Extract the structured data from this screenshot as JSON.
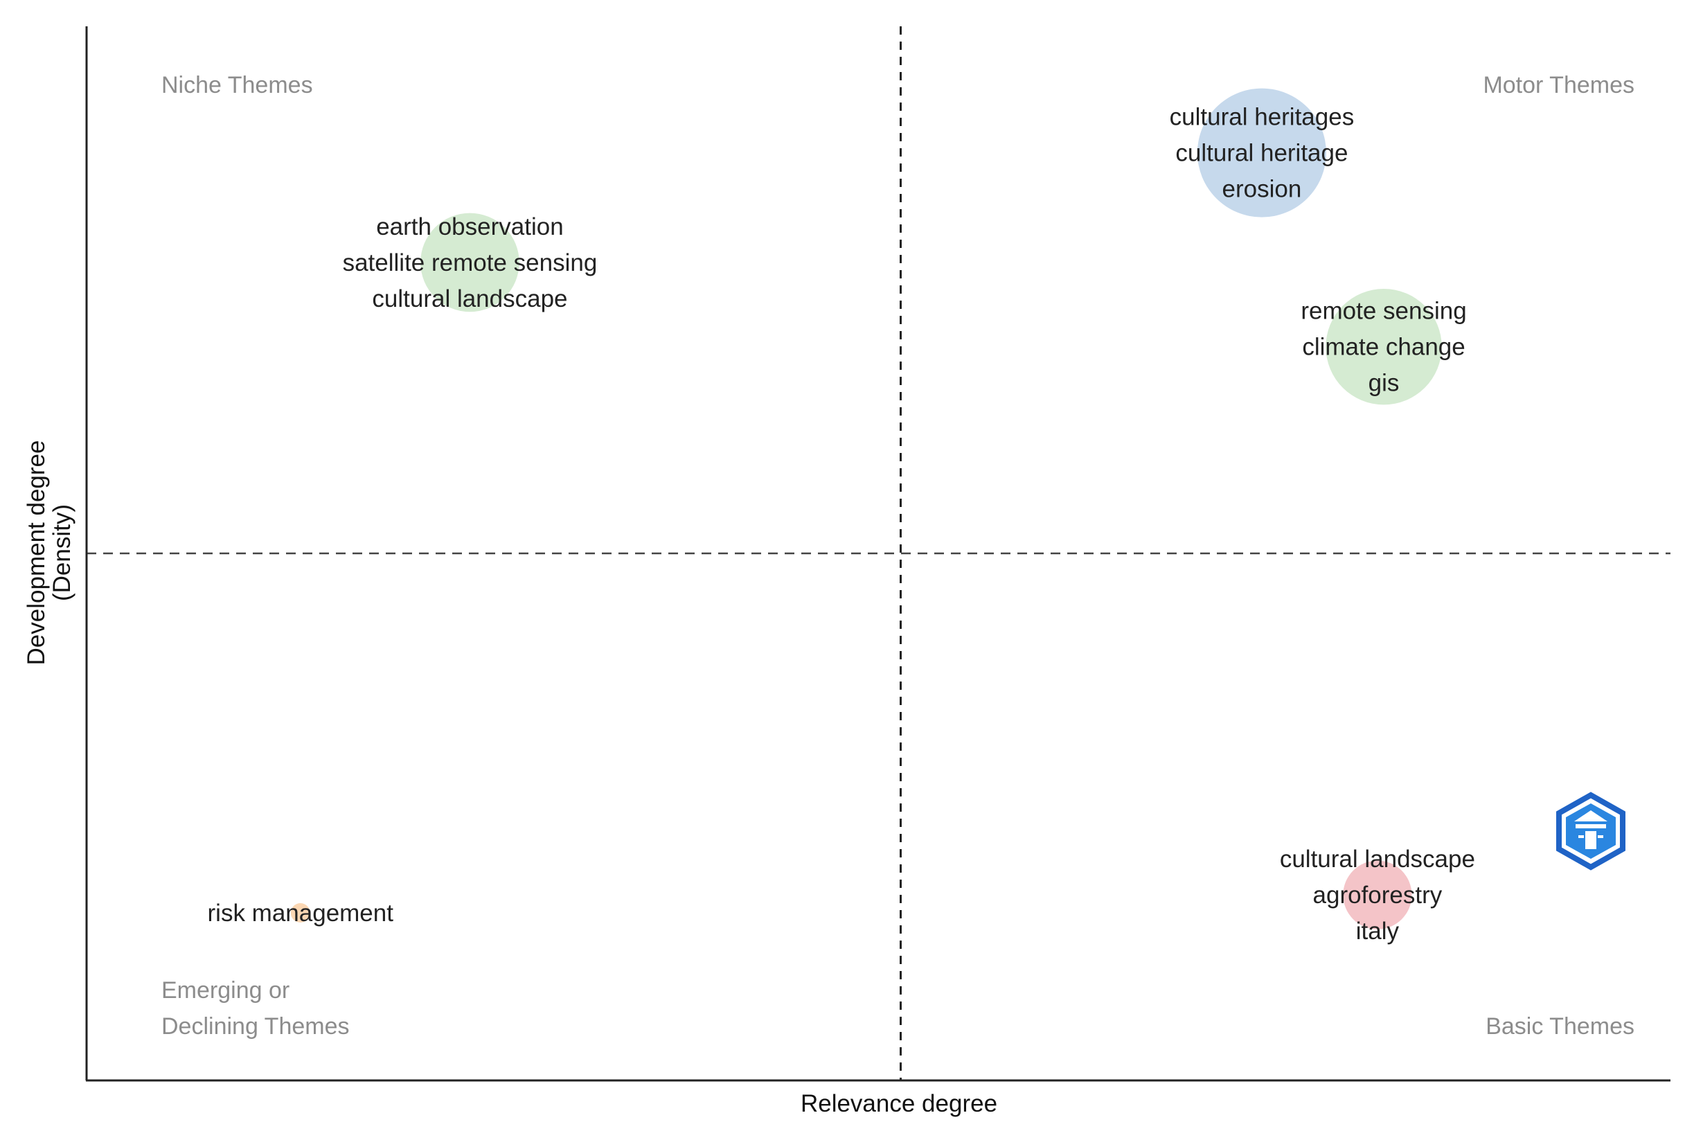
{
  "chart_data": {
    "type": "scatter",
    "title": "",
    "xlabel": "Relevance degree",
    "ylabel": "Development degree",
    "ylabel_sub": "(Density)",
    "xlim": [
      0,
      100
    ],
    "ylim": [
      0,
      100
    ],
    "x_divider": 51.4,
    "y_divider": 50.0,
    "grid": false,
    "quadrants": {
      "top_left": "Niche Themes",
      "top_right": "Motor Themes",
      "bottom_left_1": "Emerging or",
      "bottom_left_2": "Declining Themes",
      "bottom_right": "Basic Themes"
    },
    "clusters": [
      {
        "id": "c1",
        "x": 74.2,
        "y": 88.0,
        "size": 60,
        "color": "#c6d9ec",
        "labels": [
          "cultural heritages",
          "cultural heritage",
          "erosion"
        ]
      },
      {
        "id": "c2",
        "x": 24.2,
        "y": 77.6,
        "size": 46,
        "color": "#d5ebd2",
        "labels": [
          "earth observation",
          "satellite remote sensing",
          "cultural landscape"
        ]
      },
      {
        "id": "c3",
        "x": 81.9,
        "y": 69.6,
        "size": 54,
        "color": "#d5ebd2",
        "labels": [
          "remote sensing",
          "climate change",
          "gis"
        ]
      },
      {
        "id": "c4",
        "x": 81.5,
        "y": 17.6,
        "size": 32,
        "color": "#f4c4c8",
        "labels": [
          "cultural landscape",
          "agroforestry",
          "italy"
        ]
      },
      {
        "id": "c5",
        "x": 13.5,
        "y": 15.9,
        "size": 9,
        "color": "#fbd7b3",
        "labels": [
          "risk management"
        ]
      }
    ]
  },
  "watermark": {
    "icon": "publisher-logo-icon",
    "color": "#1f63c6"
  }
}
